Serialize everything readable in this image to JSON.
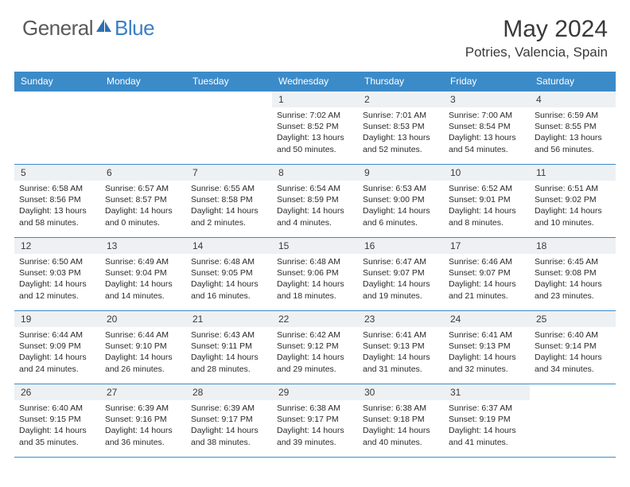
{
  "brand": {
    "word1": "General",
    "word2": "Blue"
  },
  "title": "May 2024",
  "location": "Potries, Valencia, Spain",
  "colors": {
    "header_bg": "#3b8bc9",
    "header_text": "#ffffff",
    "daynum_bg": "#eef1f3",
    "border": "#3b8bc9",
    "logo_gray": "#5a5a5a",
    "logo_blue": "#3b7fc4",
    "text": "#2a2a2a",
    "page_bg": "#ffffff"
  },
  "typography": {
    "title_fontsize": 30,
    "location_fontsize": 17,
    "header_fontsize": 12,
    "daynum_fontsize": 12,
    "cell_fontsize": 10.5,
    "logo_fontsize": 26
  },
  "weekdays": [
    "Sunday",
    "Monday",
    "Tuesday",
    "Wednesday",
    "Thursday",
    "Friday",
    "Saturday"
  ],
  "weeks": [
    [
      null,
      null,
      null,
      {
        "n": "1",
        "sr": "7:02 AM",
        "ss": "8:52 PM",
        "dl": "13 hours and 50 minutes."
      },
      {
        "n": "2",
        "sr": "7:01 AM",
        "ss": "8:53 PM",
        "dl": "13 hours and 52 minutes."
      },
      {
        "n": "3",
        "sr": "7:00 AM",
        "ss": "8:54 PM",
        "dl": "13 hours and 54 minutes."
      },
      {
        "n": "4",
        "sr": "6:59 AM",
        "ss": "8:55 PM",
        "dl": "13 hours and 56 minutes."
      }
    ],
    [
      {
        "n": "5",
        "sr": "6:58 AM",
        "ss": "8:56 PM",
        "dl": "13 hours and 58 minutes."
      },
      {
        "n": "6",
        "sr": "6:57 AM",
        "ss": "8:57 PM",
        "dl": "14 hours and 0 minutes."
      },
      {
        "n": "7",
        "sr": "6:55 AM",
        "ss": "8:58 PM",
        "dl": "14 hours and 2 minutes."
      },
      {
        "n": "8",
        "sr": "6:54 AM",
        "ss": "8:59 PM",
        "dl": "14 hours and 4 minutes."
      },
      {
        "n": "9",
        "sr": "6:53 AM",
        "ss": "9:00 PM",
        "dl": "14 hours and 6 minutes."
      },
      {
        "n": "10",
        "sr": "6:52 AM",
        "ss": "9:01 PM",
        "dl": "14 hours and 8 minutes."
      },
      {
        "n": "11",
        "sr": "6:51 AM",
        "ss": "9:02 PM",
        "dl": "14 hours and 10 minutes."
      }
    ],
    [
      {
        "n": "12",
        "sr": "6:50 AM",
        "ss": "9:03 PM",
        "dl": "14 hours and 12 minutes."
      },
      {
        "n": "13",
        "sr": "6:49 AM",
        "ss": "9:04 PM",
        "dl": "14 hours and 14 minutes."
      },
      {
        "n": "14",
        "sr": "6:48 AM",
        "ss": "9:05 PM",
        "dl": "14 hours and 16 minutes."
      },
      {
        "n": "15",
        "sr": "6:48 AM",
        "ss": "9:06 PM",
        "dl": "14 hours and 18 minutes."
      },
      {
        "n": "16",
        "sr": "6:47 AM",
        "ss": "9:07 PM",
        "dl": "14 hours and 19 minutes."
      },
      {
        "n": "17",
        "sr": "6:46 AM",
        "ss": "9:07 PM",
        "dl": "14 hours and 21 minutes."
      },
      {
        "n": "18",
        "sr": "6:45 AM",
        "ss": "9:08 PM",
        "dl": "14 hours and 23 minutes."
      }
    ],
    [
      {
        "n": "19",
        "sr": "6:44 AM",
        "ss": "9:09 PM",
        "dl": "14 hours and 24 minutes."
      },
      {
        "n": "20",
        "sr": "6:44 AM",
        "ss": "9:10 PM",
        "dl": "14 hours and 26 minutes."
      },
      {
        "n": "21",
        "sr": "6:43 AM",
        "ss": "9:11 PM",
        "dl": "14 hours and 28 minutes."
      },
      {
        "n": "22",
        "sr": "6:42 AM",
        "ss": "9:12 PM",
        "dl": "14 hours and 29 minutes."
      },
      {
        "n": "23",
        "sr": "6:41 AM",
        "ss": "9:13 PM",
        "dl": "14 hours and 31 minutes."
      },
      {
        "n": "24",
        "sr": "6:41 AM",
        "ss": "9:13 PM",
        "dl": "14 hours and 32 minutes."
      },
      {
        "n": "25",
        "sr": "6:40 AM",
        "ss": "9:14 PM",
        "dl": "14 hours and 34 minutes."
      }
    ],
    [
      {
        "n": "26",
        "sr": "6:40 AM",
        "ss": "9:15 PM",
        "dl": "14 hours and 35 minutes."
      },
      {
        "n": "27",
        "sr": "6:39 AM",
        "ss": "9:16 PM",
        "dl": "14 hours and 36 minutes."
      },
      {
        "n": "28",
        "sr": "6:39 AM",
        "ss": "9:17 PM",
        "dl": "14 hours and 38 minutes."
      },
      {
        "n": "29",
        "sr": "6:38 AM",
        "ss": "9:17 PM",
        "dl": "14 hours and 39 minutes."
      },
      {
        "n": "30",
        "sr": "6:38 AM",
        "ss": "9:18 PM",
        "dl": "14 hours and 40 minutes."
      },
      {
        "n": "31",
        "sr": "6:37 AM",
        "ss": "9:19 PM",
        "dl": "14 hours and 41 minutes."
      },
      null
    ]
  ],
  "labels": {
    "sunrise": "Sunrise: ",
    "sunset": "Sunset: ",
    "daylight": "Daylight: "
  }
}
